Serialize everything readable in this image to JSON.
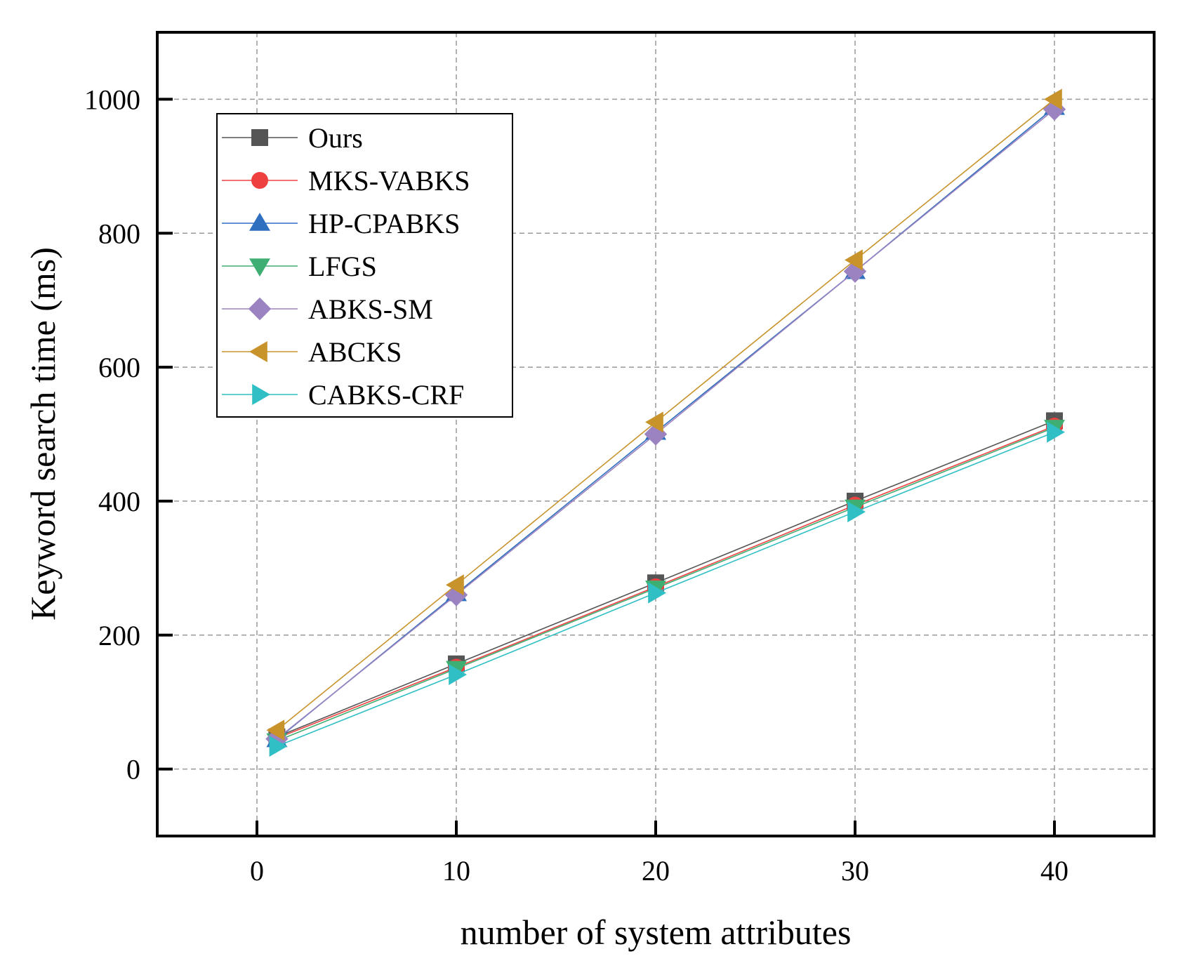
{
  "chart_data": {
    "type": "line",
    "xlabel": "number of system attributes",
    "ylabel": "Keyword search time (ms)",
    "xlim": [
      -5,
      45
    ],
    "ylim": [
      -100,
      1100
    ],
    "xticks": [
      0,
      10,
      20,
      30,
      40
    ],
    "yticks": [
      0,
      200,
      400,
      600,
      800,
      1000
    ],
    "grid": true,
    "legend_position": "top-left",
    "x": [
      1,
      10,
      20,
      30,
      40
    ],
    "series": [
      {
        "name": "Ours",
        "marker": "square",
        "color": "#555555",
        "values": [
          48,
          157,
          278,
          400,
          520
        ]
      },
      {
        "name": "MKS-VABKS",
        "marker": "circle",
        "color": "#ef4040",
        "values": [
          46,
          152,
          272,
          394,
          512
        ]
      },
      {
        "name": "HP-CPABKS",
        "marker": "triangle-up",
        "color": "#2e6fbf",
        "values": [
          44,
          262,
          503,
          743,
          988
        ]
      },
      {
        "name": " LFGS",
        "marker": "triangle-down",
        "color": "#3fae72",
        "values": [
          42,
          150,
          270,
          391,
          510
        ]
      },
      {
        "name": " ABKS-SM",
        "marker": "diamond",
        "color": "#9b82c0",
        "values": [
          45,
          260,
          500,
          743,
          985
        ]
      },
      {
        "name": "ABCKS",
        "marker": "triangle-left",
        "color": "#c8932b",
        "values": [
          58,
          275,
          518,
          760,
          1000
        ]
      },
      {
        "name": "CABKS-CRF",
        "marker": "triangle-right",
        "color": "#2fbfc4",
        "values": [
          34,
          141,
          263,
          384,
          503
        ]
      }
    ]
  }
}
